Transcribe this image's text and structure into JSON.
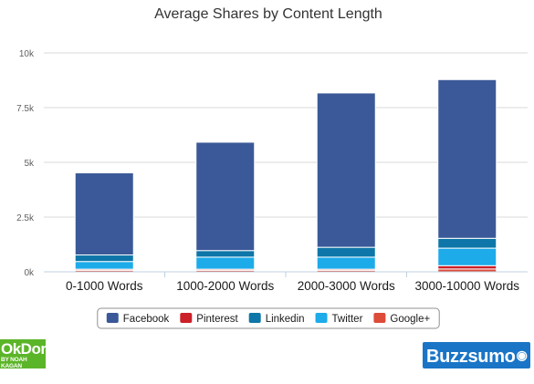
{
  "chart_data": {
    "type": "bar",
    "stacked": true,
    "title": "Average Shares by Content Length",
    "xlabel": "",
    "ylabel": "",
    "categories": [
      "0-1000 Words",
      "1000-2000 Words",
      "2000-3000 Words",
      "3000-10000 Words"
    ],
    "yticks": [
      "0k",
      "2.5k",
      "5k",
      "7.5k",
      "10k"
    ],
    "ylim": [
      0,
      10000
    ],
    "grid": true,
    "legend_position": "bottom",
    "series": [
      {
        "name": "Facebook",
        "color": "#3b5998",
        "values": [
          3750,
          4950,
          7050,
          7250
        ]
      },
      {
        "name": "Pinterest",
        "color": "#cb2027",
        "values": [
          50,
          50,
          50,
          150
        ]
      },
      {
        "name": "Linkedin",
        "color": "#0e76a8",
        "values": [
          300,
          300,
          450,
          450
        ]
      },
      {
        "name": "Twitter",
        "color": "#1dabea",
        "values": [
          350,
          550,
          550,
          800
        ]
      },
      {
        "name": "Google+",
        "color": "#dd4b39",
        "values": [
          70,
          70,
          70,
          130
        ]
      }
    ],
    "stack_order_bottom_to_top": [
      "Google+",
      "Pinterest",
      "Twitter",
      "Linkedin",
      "Facebook"
    ]
  },
  "logos": {
    "okdork": {
      "main": "OkDork",
      "sub": "BY NOAH KAGAN",
      "color": "#5bb528"
    },
    "buzzsumo": {
      "main": "Buzzsumo",
      "color": "#1a75c6",
      "icon": "wifi-icon"
    }
  }
}
